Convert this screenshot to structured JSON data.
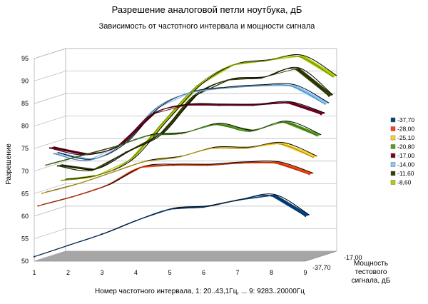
{
  "chart_data": {
    "type": "line",
    "style": "3d",
    "title": "Разрешение аналоговой петли ноутбука, дБ",
    "subtitle": "Зависимость от частотного интервала и мощности сигнала",
    "xlabel": "Номер частотного интервала, 1: 20..43,1Гц, ... 9: 9283..20000Гц",
    "ylabel": "Разрешение",
    "zlabel": "Мощность тестового сигнала, дБ",
    "zlabel_lines": [
      "Мощность",
      "тестового",
      "сигнала, дБ"
    ],
    "x": [
      1,
      2,
      3,
      4,
      5,
      6,
      7,
      8,
      9
    ],
    "ylim": [
      50,
      95
    ],
    "y_ticks": [
      50,
      55,
      60,
      65,
      70,
      75,
      80,
      85,
      90,
      95
    ],
    "depth_ticks": [
      "-37,70",
      "-17,00"
    ],
    "grid": true,
    "legend_position": "right",
    "series": [
      {
        "name": "-37,70",
        "color": "#004586",
        "values": [
          51,
          53.5,
          56,
          59,
          61.5,
          62,
          63.5,
          64.5,
          60
        ]
      },
      {
        "name": "-28,00",
        "color": "#ff420e",
        "values": [
          62,
          64,
          66.5,
          70.5,
          71,
          71,
          71.5,
          71.5,
          69
        ]
      },
      {
        "name": "-25,10",
        "color": "#ffd320",
        "values": [
          64.5,
          66.5,
          69,
          71.5,
          72.5,
          74.5,
          74.5,
          75.5,
          72.5
        ]
      },
      {
        "name": "-20,80",
        "color": "#579d1c",
        "values": [
          70.5,
          72.5,
          74.5,
          77,
          77.5,
          79.5,
          78,
          80,
          77
        ]
      },
      {
        "name": "-17,00",
        "color": "#7e0021",
        "values": [
          74,
          72.5,
          74.5,
          81.5,
          83.5,
          83.5,
          83.5,
          84,
          81.5
        ]
      },
      {
        "name": "-14,00",
        "color": "#83caff",
        "values": [
          72.5,
          71,
          74.5,
          82.5,
          86,
          87,
          87.5,
          87.5,
          83.5
        ]
      },
      {
        "name": "-11,60",
        "color": "#314004",
        "values": [
          69.5,
          68.5,
          72.5,
          76.5,
          85,
          88.5,
          89,
          91,
          85
        ]
      },
      {
        "name": "-8,60",
        "color": "#aecf00",
        "values": [
          66,
          67,
          70.5,
          79,
          87,
          91.5,
          92.5,
          93.5,
          89
        ]
      }
    ]
  }
}
